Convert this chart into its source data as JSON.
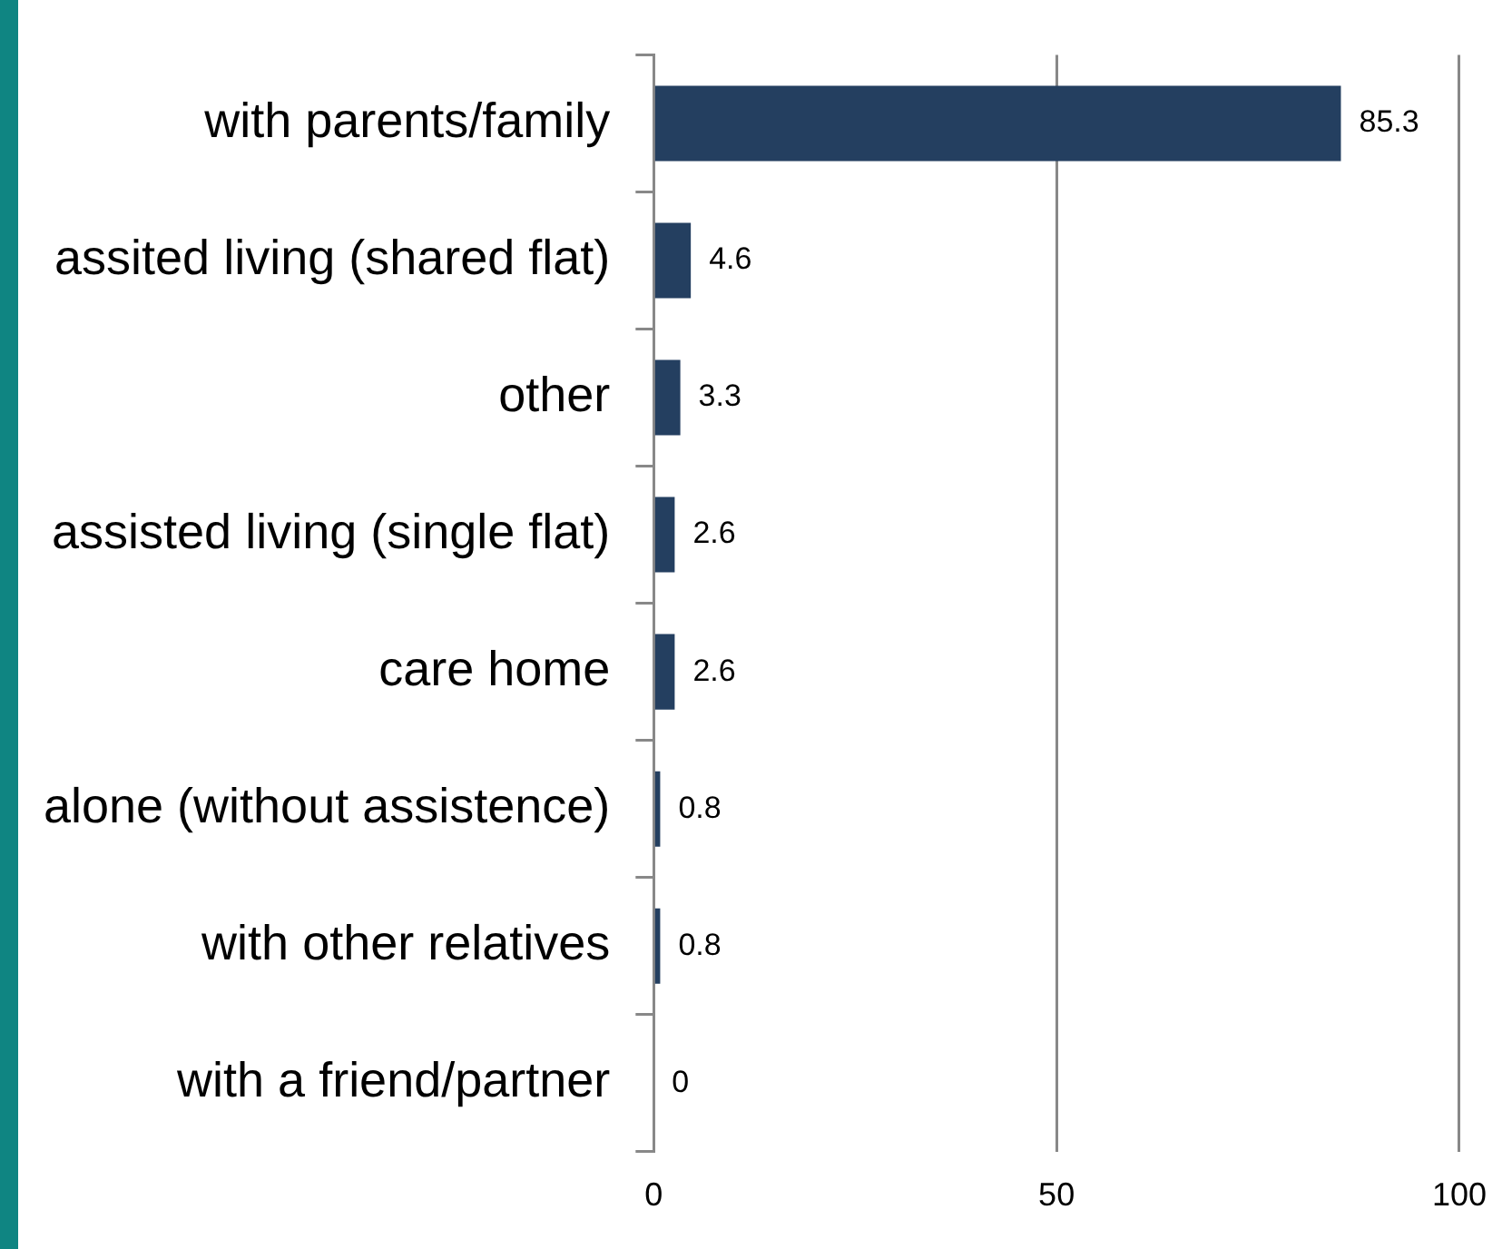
{
  "chart_data": {
    "type": "bar",
    "orientation": "horizontal",
    "categories": [
      "with parents/family",
      "assited living (shared flat)",
      "other",
      "assisted living (single flat)",
      "care home",
      "alone (without assistence)",
      "with other relatives",
      "with a friend/partner"
    ],
    "values": [
      85.3,
      4.6,
      3.3,
      2.6,
      2.6,
      0.8,
      0.8,
      0
    ],
    "color": "#243f60",
    "xlim": [
      0,
      100
    ],
    "xticks": [
      0,
      50,
      100
    ],
    "grid": "x",
    "data_labels": true
  }
}
